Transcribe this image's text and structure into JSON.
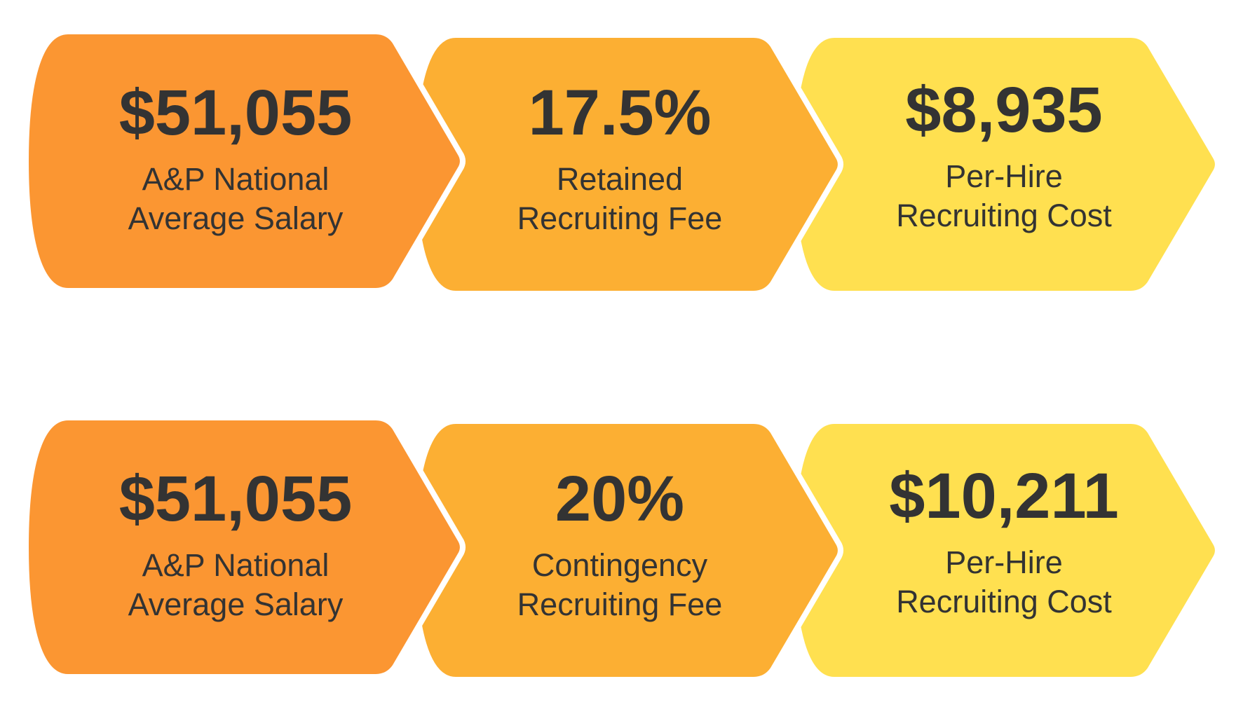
{
  "colors": {
    "step1": "#FB9632",
    "step2": "#FCAF33",
    "step3": "#FFE050",
    "text": "#333333"
  },
  "rows": [
    {
      "steps": [
        {
          "value": "$51,055",
          "line1": "A&P National",
          "line2": "Average Salary"
        },
        {
          "value": "17.5%",
          "line1": "Retained",
          "line2": "Recruiting Fee"
        },
        {
          "value": "$8,935",
          "line1": "Per-Hire",
          "line2": "Recruiting Cost"
        }
      ]
    },
    {
      "steps": [
        {
          "value": "$51,055",
          "line1": "A&P National",
          "line2": "Average Salary"
        },
        {
          "value": "20%",
          "line1": "Contingency",
          "line2": "Recruiting Fee"
        },
        {
          "value": "$10,211",
          "line1": "Per-Hire",
          "line2": "Recruiting Cost"
        }
      ]
    }
  ]
}
